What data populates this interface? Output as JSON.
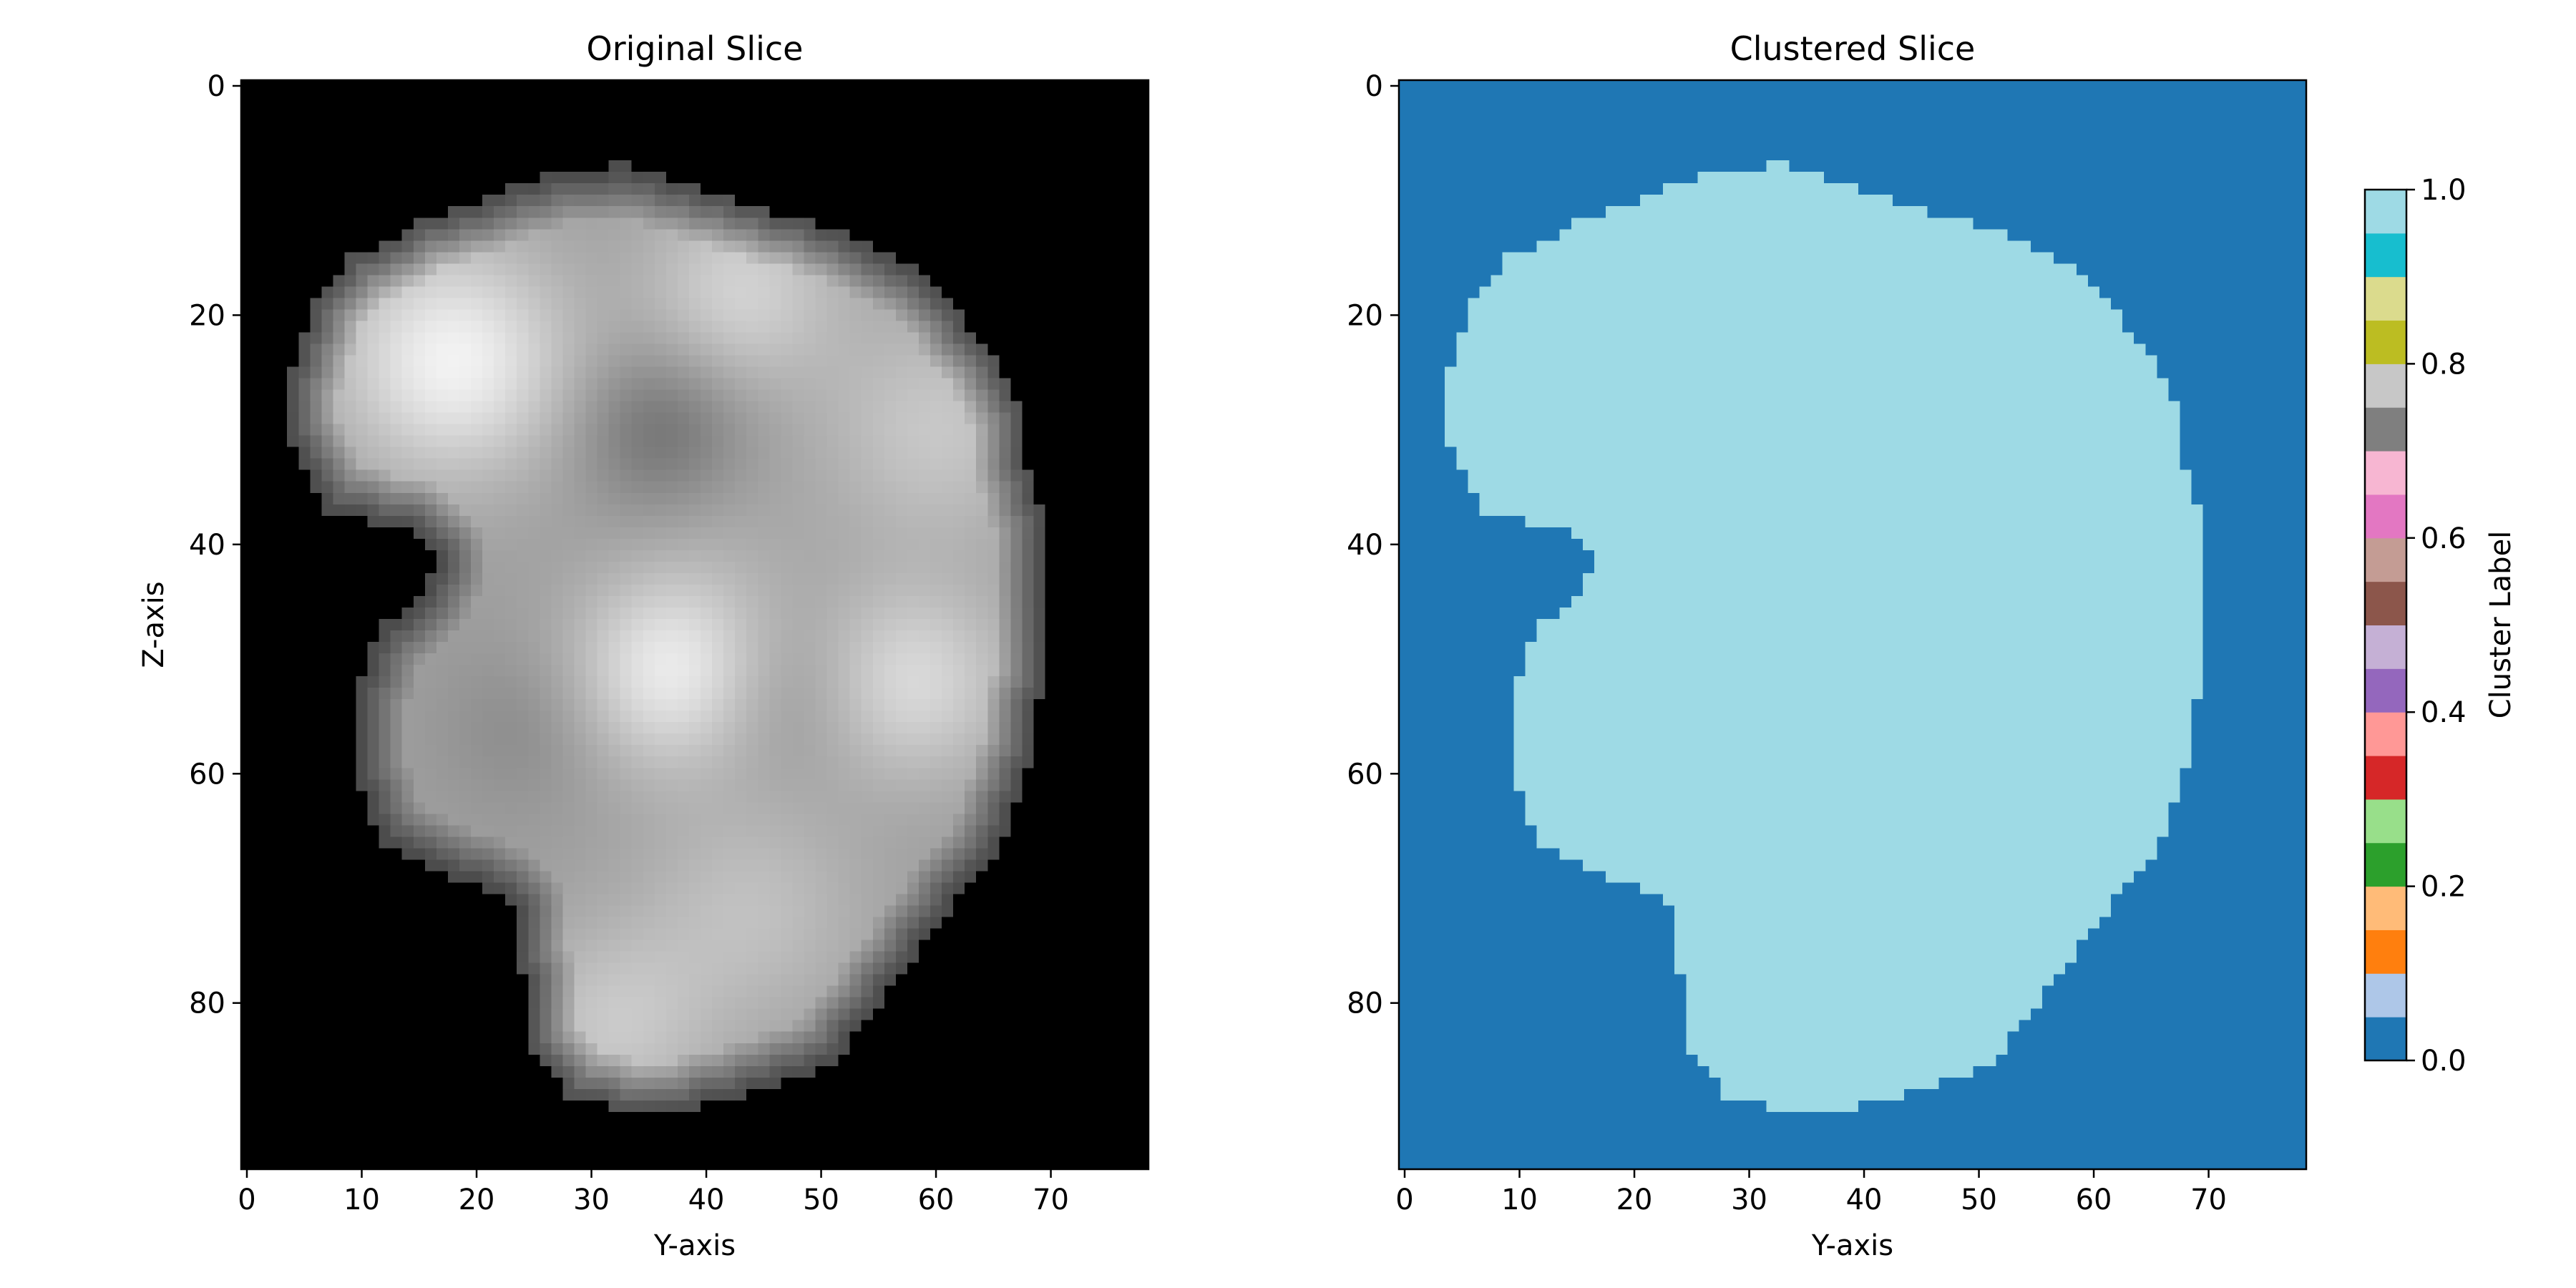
{
  "chart_data": [
    {
      "type": "heatmap",
      "title": "Original Slice",
      "xlabel": "Y-axis",
      "ylabel": "Z-axis",
      "colormap": "gray",
      "xlim": [
        -0.5,
        78.5
      ],
      "ylim": [
        94.5,
        -0.5
      ],
      "xticks": [
        0,
        10,
        20,
        30,
        40,
        50,
        60,
        70
      ],
      "yticks": [
        0,
        20,
        40,
        60,
        80
      ],
      "background_value": 0,
      "mask_outline": [
        [
          7,
          31.5
        ],
        [
          7,
          34
        ],
        [
          8,
          37
        ],
        [
          9,
          40
        ],
        [
          10,
          43
        ],
        [
          11,
          46
        ],
        [
          12,
          50
        ],
        [
          13,
          53
        ],
        [
          14,
          55
        ],
        [
          15,
          57
        ],
        [
          17,
          60
        ],
        [
          19,
          62
        ],
        [
          21,
          63
        ],
        [
          23,
          65
        ],
        [
          25,
          66
        ],
        [
          27,
          67
        ],
        [
          30,
          67.5
        ],
        [
          33,
          68
        ],
        [
          36,
          69
        ],
        [
          39,
          69.5
        ],
        [
          42,
          70
        ],
        [
          45,
          70
        ],
        [
          48,
          70
        ],
        [
          51,
          69.5
        ],
        [
          54,
          69
        ],
        [
          57,
          68.5
        ],
        [
          60,
          68
        ],
        [
          63,
          67
        ],
        [
          66,
          66
        ],
        [
          69,
          64
        ],
        [
          71,
          62
        ],
        [
          73,
          61
        ],
        [
          75,
          59
        ],
        [
          77,
          58
        ],
        [
          79,
          56
        ],
        [
          81,
          55
        ],
        [
          83,
          53
        ],
        [
          85,
          52
        ],
        [
          86,
          50
        ],
        [
          87,
          47
        ],
        [
          88,
          44
        ],
        [
          89,
          40
        ],
        [
          89.5,
          35
        ],
        [
          89,
          32
        ],
        [
          88,
          28
        ],
        [
          86,
          27
        ],
        [
          84,
          25
        ],
        [
          82,
          25
        ],
        [
          80,
          25
        ],
        [
          77,
          24
        ],
        [
          74,
          24
        ],
        [
          71,
          23
        ],
        [
          70,
          21
        ],
        [
          69,
          18
        ],
        [
          68,
          16
        ],
        [
          67,
          14
        ],
        [
          66,
          12
        ],
        [
          65,
          11.5
        ],
        [
          63,
          10.5
        ],
        [
          61,
          10
        ],
        [
          58,
          10
        ],
        [
          55,
          10
        ],
        [
          52,
          10
        ],
        [
          49,
          11
        ],
        [
          47,
          12
        ],
        [
          45,
          15
        ],
        [
          43,
          16
        ],
        [
          41,
          17
        ],
        [
          39,
          15
        ],
        [
          38,
          11
        ],
        [
          38,
          9
        ],
        [
          37,
          7
        ],
        [
          35,
          6
        ],
        [
          33,
          5
        ],
        [
          31,
          4
        ],
        [
          28,
          4
        ],
        [
          25,
          4
        ],
        [
          22,
          5
        ],
        [
          19,
          6
        ],
        [
          17,
          8
        ],
        [
          15,
          9
        ],
        [
          14,
          12
        ],
        [
          12,
          15
        ],
        [
          11,
          18
        ],
        [
          10,
          20.5
        ],
        [
          9,
          23
        ],
        [
          8,
          26
        ],
        [
          7.5,
          29
        ]
      ],
      "blobs": [
        {
          "y": 18,
          "z": 24,
          "sigma": 7,
          "intensity": 0.95
        },
        {
          "y": 37,
          "z": 51,
          "sigma": 6,
          "intensity": 0.92
        },
        {
          "y": 43,
          "z": 18,
          "sigma": 6,
          "intensity": 0.82
        },
        {
          "y": 36,
          "z": 30,
          "sigma": 5,
          "intensity": 0.45
        },
        {
          "y": 24,
          "z": 56,
          "sigma": 5,
          "intensity": 0.55
        },
        {
          "y": 47,
          "z": 53,
          "sigma": 5,
          "intensity": 0.55
        },
        {
          "y": 58,
          "z": 52,
          "sigma": 6,
          "intensity": 0.85
        },
        {
          "y": 42,
          "z": 40,
          "sigma": 6,
          "intensity": 0.65
        },
        {
          "y": 44,
          "z": 72,
          "sigma": 7,
          "intensity": 0.75
        },
        {
          "y": 32,
          "z": 82,
          "sigma": 6,
          "intensity": 0.78
        },
        {
          "y": 60,
          "z": 30,
          "sigma": 7,
          "intensity": 0.78
        }
      ]
    },
    {
      "type": "heatmap",
      "title": "Clustered Slice",
      "xlabel": "Y-axis",
      "ylabel": "",
      "colormap": "tab20",
      "xlim": [
        -0.5,
        78.5
      ],
      "ylim": [
        94.5,
        -0.5
      ],
      "xticks": [
        0,
        10,
        20,
        30,
        40,
        50,
        60,
        70
      ],
      "yticks": [
        0,
        20,
        40,
        60,
        80
      ],
      "background_label": 0.0,
      "region_label": 1.0,
      "region_outline_ref": "same as Original Slice mask",
      "colorbar": {
        "label": "Cluster Label",
        "range": [
          0.0,
          1.0
        ],
        "ticks": [
          "0.0",
          "0.2",
          "0.4",
          "0.6",
          "0.8",
          "1.0"
        ],
        "colors": [
          "#1f77b4",
          "#aec7e8",
          "#ff7f0e",
          "#ffbb78",
          "#2ca02c",
          "#98df8a",
          "#d62728",
          "#ff9896",
          "#9467bd",
          "#c5b0d5",
          "#8c564b",
          "#c49c94",
          "#e377c2",
          "#f7b6d2",
          "#7f7f7f",
          "#c7c7c7",
          "#bcbd22",
          "#dbdb8d",
          "#17becf",
          "#9edae5"
        ]
      }
    }
  ]
}
